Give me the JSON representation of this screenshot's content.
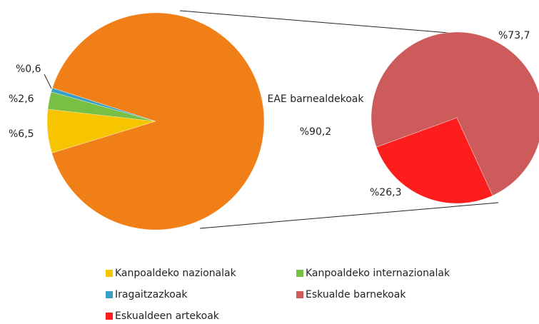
{
  "chart_data": {
    "type": "pie",
    "categories": [
      "EAE barnealdekoak",
      "Kanpoaldeko nazionalak",
      "Kanpoaldeko internazionalak",
      "Iragaitzazkoak"
    ],
    "values": [
      90.2,
      6.5,
      2.6,
      0.6
    ],
    "value_labels": [
      "%90,2",
      "%6,5",
      "%2,6",
      "%0,6"
    ],
    "colors": [
      "#f07f17",
      "#f7c500",
      "#77bf45",
      "#3a9fc6"
    ],
    "secondary": {
      "categories": [
        "Eskualde barnekoak",
        "Eskualdeen artekoak"
      ],
      "values": [
        73.7,
        26.3
      ],
      "value_labels": [
        "%73,7",
        "%26,3"
      ],
      "colors": [
        "#cd5b5b",
        "#fe1d1d"
      ]
    }
  }
}
